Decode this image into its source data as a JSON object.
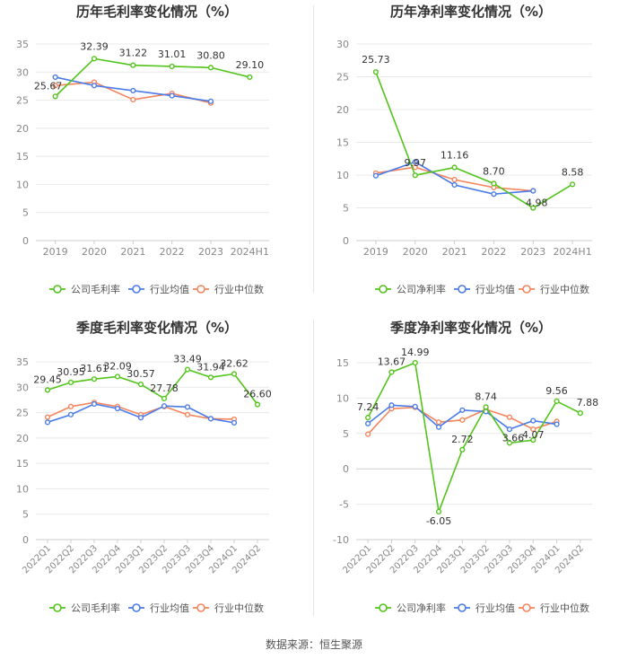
{
  "colors": {
    "company": "#52c41a",
    "industry_avg": "#4a7be8",
    "industry_median": "#f5845c",
    "grid": "#e8e8e8",
    "axis_text": "#888888",
    "title": "#333333"
  },
  "legend_labels": {
    "industry_avg": "行业均值",
    "industry_median": "行业中位数"
  },
  "source_text": "数据来源：恒生聚源",
  "chart_data": [
    {
      "type": "line",
      "title": "历年毛利率变化情况（%）",
      "categories": [
        "2019",
        "2020",
        "2021",
        "2022",
        "2023",
        "2024H1"
      ],
      "yticks": [
        0,
        5,
        10,
        15,
        20,
        25,
        30,
        35
      ],
      "ylim": [
        0,
        35
      ],
      "series": [
        {
          "key": "company",
          "name": "公司毛利率",
          "values": [
            25.67,
            32.39,
            31.22,
            31.01,
            30.8,
            29.1
          ],
          "labels": [
            "25.67",
            "32.39",
            "31.22",
            "31.01",
            "30.80",
            "29.10"
          ]
        },
        {
          "key": "industry_avg",
          "name": "行业均值",
          "values": [
            29.1,
            27.6,
            26.7,
            25.8,
            24.8,
            null
          ]
        },
        {
          "key": "industry_median",
          "name": "行业中位数",
          "values": [
            27.6,
            28.2,
            25.1,
            26.2,
            24.5,
            null
          ]
        }
      ]
    },
    {
      "type": "line",
      "title": "历年净利率变化情况（%）",
      "categories": [
        "2019",
        "2020",
        "2021",
        "2022",
        "2023",
        "2024H1"
      ],
      "yticks": [
        0,
        5,
        10,
        15,
        20,
        25,
        30
      ],
      "ylim": [
        0,
        30
      ],
      "series": [
        {
          "key": "company",
          "name": "公司净利率",
          "values": [
            25.73,
            9.97,
            11.16,
            8.7,
            4.98,
            8.58
          ],
          "labels": [
            "25.73",
            "9.97",
            "11.16",
            "8.70",
            "4.98",
            "8.58"
          ]
        },
        {
          "key": "industry_avg",
          "name": "行业均值",
          "values": [
            9.9,
            12.0,
            8.5,
            7.1,
            7.6,
            null
          ]
        },
        {
          "key": "industry_median",
          "name": "行业中位数",
          "values": [
            10.3,
            11.2,
            9.3,
            8.1,
            7.6,
            null
          ]
        }
      ]
    },
    {
      "type": "line",
      "title": "季度毛利率变化情况（%）",
      "categories": [
        "2022Q1",
        "2022Q2",
        "2022Q3",
        "2022Q4",
        "2023Q1",
        "2023Q2",
        "2023Q3",
        "2023Q4",
        "2024Q1",
        "2024Q2"
      ],
      "yticks": [
        0,
        5,
        10,
        15,
        20,
        25,
        30,
        35
      ],
      "ylim": [
        0,
        35
      ],
      "series": [
        {
          "key": "company",
          "name": "公司毛利率",
          "values": [
            29.45,
            30.95,
            31.61,
            32.09,
            30.57,
            27.78,
            33.49,
            31.94,
            32.62,
            26.6
          ],
          "labels": [
            "29.45",
            "30.95",
            "31.61",
            "32.09",
            "30.57",
            "27.78",
            "33.49",
            "31.94",
            "32.62",
            "26.60"
          ]
        },
        {
          "key": "industry_avg",
          "name": "行业均值",
          "values": [
            23.1,
            24.6,
            26.7,
            25.8,
            24.0,
            26.3,
            26.1,
            23.8,
            23.0,
            null
          ]
        },
        {
          "key": "industry_median",
          "name": "行业中位数",
          "values": [
            24.1,
            26.2,
            27.0,
            26.2,
            24.6,
            26.2,
            24.6,
            23.8,
            23.7,
            null
          ]
        }
      ]
    },
    {
      "type": "line",
      "title": "季度净利率变化情况（%）",
      "categories": [
        "2022Q1",
        "2022Q2",
        "2022Q3",
        "2022Q4",
        "2023Q1",
        "2023Q2",
        "2023Q3",
        "2023Q4",
        "2024Q1",
        "2024Q2"
      ],
      "yticks": [
        -10,
        -5,
        0,
        5,
        10,
        15
      ],
      "ylim": [
        -10,
        15
      ],
      "series": [
        {
          "key": "company",
          "name": "公司净利率",
          "values": [
            7.24,
            13.67,
            14.99,
            -6.05,
            2.72,
            8.74,
            3.66,
            4.07,
            9.56,
            7.88
          ],
          "labels": [
            "7.24",
            "13.67",
            "14.99",
            "-6.05",
            "2.72",
            "8.74",
            "3.66",
            "4.07",
            "9.56",
            "7.88"
          ]
        },
        {
          "key": "industry_avg",
          "name": "行业均值",
          "values": [
            6.4,
            9.0,
            8.8,
            5.9,
            8.3,
            8.1,
            5.6,
            6.8,
            6.3,
            null
          ]
        },
        {
          "key": "industry_median",
          "name": "行业中位数",
          "values": [
            4.9,
            8.5,
            8.7,
            6.6,
            6.9,
            8.4,
            7.3,
            5.6,
            6.7,
            null
          ]
        }
      ]
    }
  ]
}
